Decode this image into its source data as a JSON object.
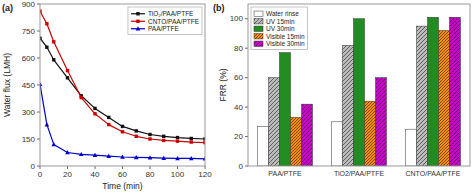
{
  "chart_data": [
    {
      "type": "line",
      "title": "(a)",
      "x_label": "Time (min)",
      "y_label": "Water flux (LMH)",
      "x": [
        0,
        5,
        10,
        20,
        30,
        40,
        50,
        60,
        70,
        80,
        90,
        100,
        110,
        120
      ],
      "series": [
        {
          "name": "TiO₂/PAA/PTFE",
          "color": "#111111",
          "marker": "square",
          "values": [
            710,
            660,
            590,
            490,
            390,
            320,
            270,
            220,
            195,
            175,
            165,
            158,
            153,
            150
          ]
        },
        {
          "name": "CNTO/PAA/PTFE",
          "color": "#cc0000",
          "marker": "square",
          "values": [
            860,
            790,
            690,
            530,
            380,
            290,
            230,
            190,
            165,
            150,
            142,
            138,
            133,
            130
          ]
        },
        {
          "name": "PAA/PTFE",
          "color": "#0000cc",
          "marker": "triangle",
          "values": [
            455,
            230,
            120,
            75,
            65,
            60,
            55,
            50,
            48,
            46,
            44,
            42,
            42,
            40
          ]
        }
      ],
      "xlim": [
        0,
        120
      ],
      "ylim": [
        0,
        900
      ],
      "xticks": [
        0,
        20,
        40,
        60,
        80,
        100,
        120
      ],
      "yticks": [
        0,
        150,
        300,
        450,
        600,
        750,
        900
      ],
      "legend": "upper right",
      "grid": false
    },
    {
      "type": "bar",
      "title": "(b)",
      "y_label": "FRR (%)",
      "categories": [
        "PAA/PTFE",
        "TiO2/PAA/PTFE",
        "CNTO/PAA/PTFE"
      ],
      "series": [
        {
          "name": "Water rinse",
          "color": "#ffffff",
          "values": [
            27,
            30,
            25
          ]
        },
        {
          "name": "UV 15min",
          "color": "#bbbbbb",
          "values": [
            60,
            82,
            95
          ]
        },
        {
          "name": "UV 30min",
          "color": "#228B22",
          "values": [
            77,
            100,
            101
          ]
        },
        {
          "name": "Visible 15min",
          "color": "#FF8C00",
          "values": [
            33,
            44,
            92
          ]
        },
        {
          "name": "Visible 30min",
          "color": "#CC00CC",
          "values": [
            42,
            60,
            101
          ]
        }
      ],
      "ylim": [
        0,
        110
      ],
      "yticks": [
        0,
        20,
        40,
        60,
        80,
        100
      ],
      "legend": "upper left",
      "grid": false
    }
  ]
}
